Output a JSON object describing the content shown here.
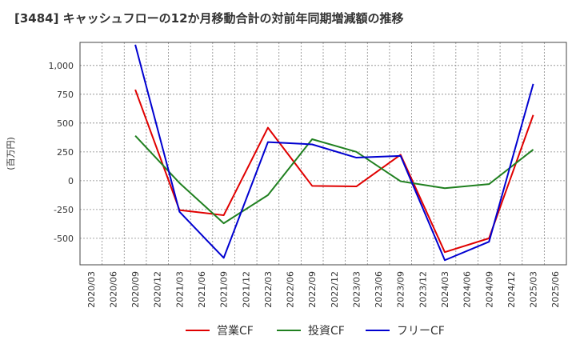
{
  "chart_data": {
    "type": "line",
    "title": "[3484]  キャッシュフローの12か月移動合計の対前年同期増減額の推移",
    "ylabel": "(百万円)",
    "xlabel": "",
    "ylim": [
      -730,
      1200
    ],
    "yticks": [
      -500,
      -250,
      0,
      250,
      500,
      750,
      1000
    ],
    "ytick_labels": [
      "-500",
      "-250",
      "0",
      "250",
      "500",
      "750",
      "1,000"
    ],
    "categories": [
      "2020/03",
      "2020/06",
      "2020/09",
      "2020/12",
      "2021/03",
      "2021/06",
      "2021/09",
      "2021/12",
      "2022/03",
      "2022/06",
      "2022/09",
      "2022/12",
      "2023/03",
      "2023/06",
      "2023/09",
      "2023/12",
      "2024/03",
      "2024/06",
      "2024/09",
      "2024/12",
      "2025/03",
      "2025/06"
    ],
    "grid": true,
    "legend_position": "bottom",
    "series": [
      {
        "name": "営業CF",
        "color": "#e00000",
        "values": [
          null,
          null,
          790,
          null,
          -255,
          null,
          -300,
          null,
          460,
          null,
          -45,
          null,
          -50,
          null,
          225,
          null,
          -620,
          null,
          -500,
          null,
          570,
          null
        ]
      },
      {
        "name": "投資CF",
        "color": "#208020",
        "values": [
          null,
          null,
          390,
          null,
          -20,
          null,
          -370,
          null,
          -125,
          null,
          360,
          null,
          250,
          null,
          -5,
          null,
          -65,
          null,
          -30,
          null,
          270,
          null
        ]
      },
      {
        "name": "フリーCF",
        "color": "#0000d0",
        "values": [
          null,
          null,
          1180,
          null,
          -270,
          null,
          -670,
          null,
          335,
          null,
          315,
          null,
          200,
          null,
          215,
          null,
          -690,
          null,
          -530,
          null,
          840,
          null
        ]
      }
    ]
  }
}
